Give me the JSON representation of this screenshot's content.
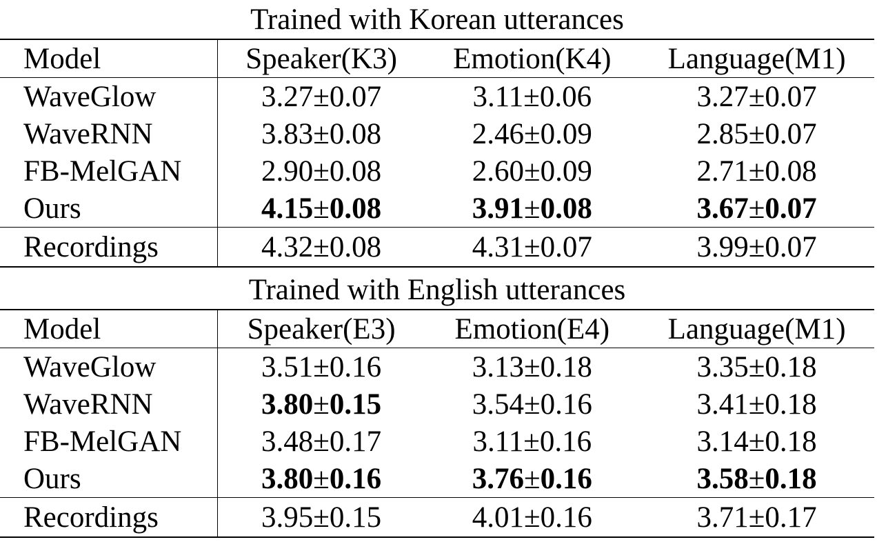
{
  "sections": [
    {
      "title": "Trained with Korean utterances",
      "headers": [
        "Model",
        "Speaker(K3)",
        "Emotion(K4)",
        "Language(M1)"
      ],
      "rows": [
        {
          "model": "WaveGlow",
          "cells": [
            {
              "mean": "3.27",
              "ci": "0.07",
              "bold": false
            },
            {
              "mean": "3.11",
              "ci": "0.06",
              "bold": false
            },
            {
              "mean": "3.27",
              "ci": "0.07",
              "bold": false
            }
          ]
        },
        {
          "model": "WaveRNN",
          "cells": [
            {
              "mean": "3.83",
              "ci": "0.08",
              "bold": false
            },
            {
              "mean": "2.46",
              "ci": "0.09",
              "bold": false
            },
            {
              "mean": "2.85",
              "ci": "0.07",
              "bold": false
            }
          ]
        },
        {
          "model": "FB-MelGAN",
          "cells": [
            {
              "mean": "2.90",
              "ci": "0.08",
              "bold": false
            },
            {
              "mean": "2.60",
              "ci": "0.09",
              "bold": false
            },
            {
              "mean": "2.71",
              "ci": "0.08",
              "bold": false
            }
          ]
        },
        {
          "model": "Ours",
          "cells": [
            {
              "mean": "4.15",
              "ci": "0.08",
              "bold": true
            },
            {
              "mean": "3.91",
              "ci": "0.08",
              "bold": true
            },
            {
              "mean": "3.67",
              "ci": "0.07",
              "bold": true
            }
          ]
        }
      ],
      "recordings": {
        "model": "Recordings",
        "cells": [
          {
            "mean": "4.32",
            "ci": "0.08",
            "bold": false
          },
          {
            "mean": "4.31",
            "ci": "0.07",
            "bold": false
          },
          {
            "mean": "3.99",
            "ci": "0.07",
            "bold": false
          }
        ]
      }
    },
    {
      "title": "Trained with English utterances",
      "headers": [
        "Model",
        "Speaker(E3)",
        "Emotion(E4)",
        "Language(M1)"
      ],
      "rows": [
        {
          "model": "WaveGlow",
          "cells": [
            {
              "mean": "3.51",
              "ci": "0.16",
              "bold": false
            },
            {
              "mean": "3.13",
              "ci": "0.18",
              "bold": false
            },
            {
              "mean": "3.35",
              "ci": "0.18",
              "bold": false
            }
          ]
        },
        {
          "model": "WaveRNN",
          "cells": [
            {
              "mean": "3.80",
              "ci": "0.15",
              "bold": true
            },
            {
              "mean": "3.54",
              "ci": "0.16",
              "bold": false
            },
            {
              "mean": "3.41",
              "ci": "0.18",
              "bold": false
            }
          ]
        },
        {
          "model": "FB-MelGAN",
          "cells": [
            {
              "mean": "3.48",
              "ci": "0.17",
              "bold": false
            },
            {
              "mean": "3.11",
              "ci": "0.16",
              "bold": false
            },
            {
              "mean": "3.14",
              "ci": "0.18",
              "bold": false
            }
          ]
        },
        {
          "model": "Ours",
          "cells": [
            {
              "mean": "3.80",
              "ci": "0.16",
              "bold": true
            },
            {
              "mean": "3.76",
              "ci": "0.16",
              "bold": true
            },
            {
              "mean": "3.58",
              "ci": "0.18",
              "bold": true
            }
          ]
        }
      ],
      "recordings": {
        "model": "Recordings",
        "cells": [
          {
            "mean": "3.95",
            "ci": "0.15",
            "bold": false
          },
          {
            "mean": "4.01",
            "ci": "0.16",
            "bold": false
          },
          {
            "mean": "3.71",
            "ci": "0.17",
            "bold": false
          }
        ]
      }
    }
  ],
  "pm_symbol": "±"
}
